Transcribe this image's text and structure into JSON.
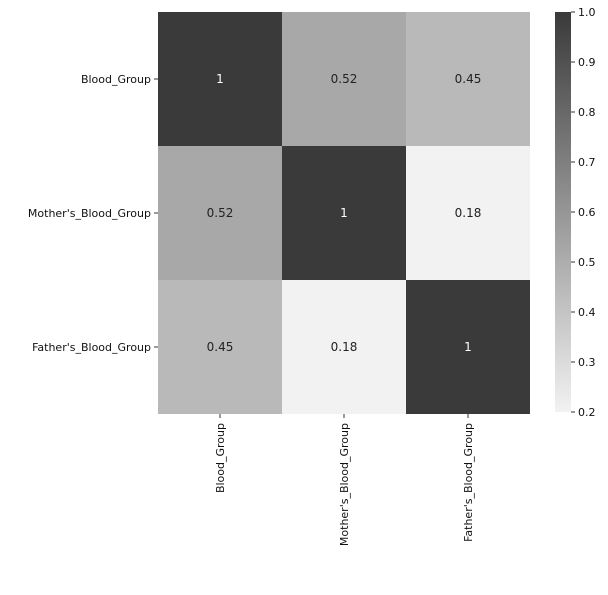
{
  "chart_data": {
    "type": "heatmap",
    "title": "",
    "xlabel": "",
    "ylabel": "",
    "x_categories": [
      "Blood_Group",
      "Mother's_Blood_Group",
      "Father's_Blood_Group"
    ],
    "y_categories": [
      "Blood_Group",
      "Mother's_Blood_Group",
      "Father's_Blood_Group"
    ],
    "values": [
      [
        1,
        0.52,
        0.45
      ],
      [
        0.52,
        1,
        0.18
      ],
      [
        0.45,
        0.18,
        1
      ]
    ],
    "cell_labels": [
      [
        "1",
        "0.52",
        "0.45"
      ],
      [
        "0.52",
        "1",
        "0.18"
      ],
      [
        "0.45",
        "0.18",
        "1"
      ]
    ],
    "colorbar": {
      "range": [
        0.2,
        1.0
      ],
      "ticks": [
        "1.0",
        "0.9",
        "0.8",
        "0.7",
        "0.6",
        "0.5",
        "0.4",
        "0.3",
        "0.2"
      ],
      "tick_values": [
        1.0,
        0.9,
        0.8,
        0.7,
        0.6,
        0.5,
        0.4,
        0.3,
        0.2
      ],
      "low_color": "#f2f2f2",
      "high_color": "#3a3a3a"
    },
    "grid": false,
    "legend": "colorbar-right"
  }
}
